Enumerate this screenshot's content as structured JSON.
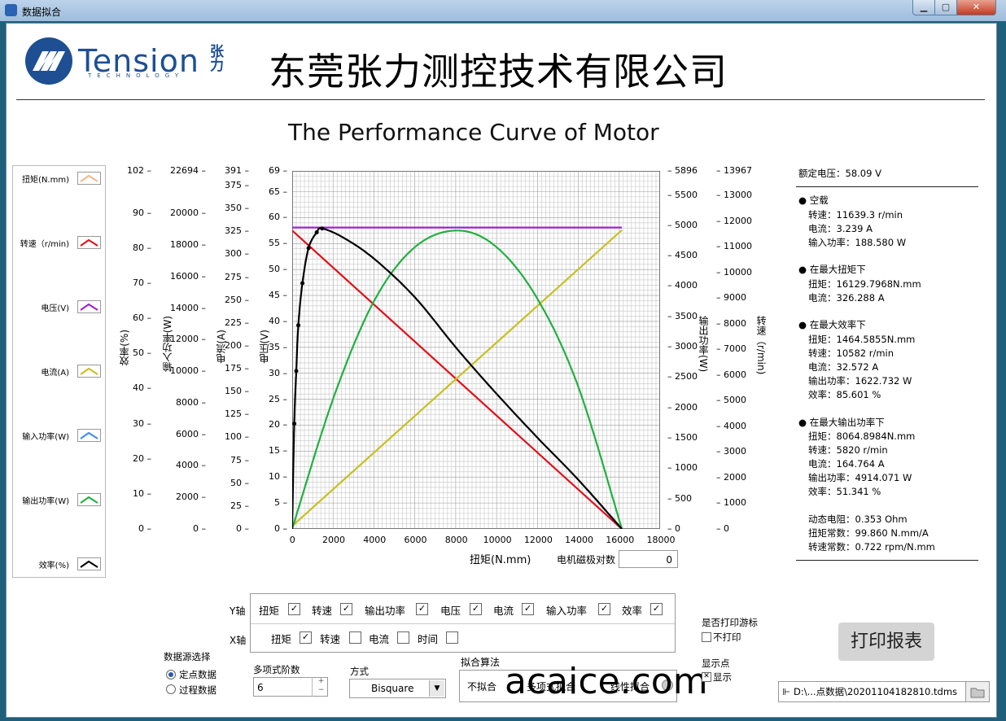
{
  "window": {
    "title": "数据拟合"
  },
  "header": {
    "logo_text": "Tension",
    "logo_sub": "TECHNOLOGY",
    "logo_cn": "张力",
    "company": "东莞张力测控技术有限公司"
  },
  "chart_title": "The Performance Curve of Motor",
  "legend": [
    {
      "label": "扭矩(N.mm)",
      "color": "#f0b98a"
    },
    {
      "label": "转速（r/min)",
      "color": "#e0101a"
    },
    {
      "label": "电压(V)",
      "color": "#a020c8"
    },
    {
      "label": "电流(A)",
      "color": "#c8c020"
    },
    {
      "label": "输入功率(W)",
      "color": "#3a8ee8"
    },
    {
      "label": "输出功率(W)",
      "color": "#20b040"
    },
    {
      "label": "效率(%)",
      "color": "#000000"
    }
  ],
  "axes": {
    "efficiency": {
      "title": "效率(%)",
      "ticks": [
        "102",
        "90",
        "80",
        "70",
        "60",
        "50",
        "40",
        "30",
        "20",
        "10",
        "0"
      ]
    },
    "input_power": {
      "title": "输入功率(W)",
      "ticks": [
        "22694",
        "20000",
        "18000",
        "16000",
        "14000",
        "12000",
        "10000",
        "8000",
        "6000",
        "4000",
        "2000",
        "0"
      ]
    },
    "current": {
      "title": "电流(A)",
      "ticks": [
        "391",
        "375",
        "350",
        "325",
        "300",
        "275",
        "250",
        "225",
        "200",
        "175",
        "150",
        "125",
        "100",
        "75",
        "50",
        "25",
        "0"
      ]
    },
    "voltage": {
      "title": "电压(V)",
      "ticks": [
        "69",
        "65",
        "60",
        "55",
        "50",
        "45",
        "40",
        "35",
        "30",
        "25",
        "20",
        "15",
        "10",
        "5",
        "0"
      ]
    },
    "output_power": {
      "title": "输出功率(W)",
      "ticks": [
        "5896",
        "5500",
        "5000",
        "4500",
        "4000",
        "3500",
        "3000",
        "2500",
        "2000",
        "1500",
        "1000",
        "500",
        "0"
      ]
    },
    "speed": {
      "title": "转速（r/min)",
      "ticks": [
        "13967",
        "13000",
        "12000",
        "11000",
        "10000",
        "9000",
        "8000",
        "7000",
        "6000",
        "5000",
        "4000",
        "3000",
        "2000",
        "1000",
        "0"
      ]
    },
    "x": {
      "title": "扭矩(N.mm)",
      "ticks": [
        "0",
        "2000",
        "4000",
        "6000",
        "8000",
        "10000",
        "12000",
        "14000",
        "16000",
        "18000"
      ]
    }
  },
  "pole_pairs": {
    "label": "电机磁极对数",
    "value": "0"
  },
  "info": {
    "rated_voltage": "额定电压：58.09 V",
    "no_load": {
      "title": "空载",
      "lines": [
        "转速：11639.3 r/min",
        "电流：3.239 A",
        "输入功率：188.580 W"
      ]
    },
    "max_torque": {
      "title": "在最大扭矩下",
      "lines": [
        "扭矩：16129.7968N.mm",
        "电流：326.288 A"
      ]
    },
    "max_eff": {
      "title": "在最大效率下",
      "lines": [
        "扭矩：1464.5855N.mm",
        "转速：10582  r/min",
        "电流：32.572 A",
        "输出功率：1622.732 W",
        "效率：85.601 %"
      ]
    },
    "max_out": {
      "title": "在最大输出功率下",
      "lines": [
        "扭矩：8064.8984N.mm",
        "转速：5820  r/min",
        "电流：164.764 A",
        "输出功率：4914.071 W",
        "效率：51.341 %"
      ]
    },
    "constants": [
      "动态电阻：0.353 Ohm",
      "扭矩常数：99.860 N.mm/A",
      "转速常数：0.722 rpm/N.mm"
    ]
  },
  "y_axis_select": {
    "label": "Y轴",
    "items": [
      {
        "label": "扭矩",
        "checked": true
      },
      {
        "label": "转速",
        "checked": true
      },
      {
        "label": "输出功率",
        "checked": true
      },
      {
        "label": "电压",
        "checked": true
      },
      {
        "label": "电流",
        "checked": true
      },
      {
        "label": "输入功率",
        "checked": true
      },
      {
        "label": "效率",
        "checked": true
      }
    ]
  },
  "x_axis_select": {
    "label": "X轴",
    "items": [
      {
        "label": "扭矩",
        "checked": true
      },
      {
        "label": "转速",
        "checked": false
      },
      {
        "label": "电流",
        "checked": false
      },
      {
        "label": "时间",
        "checked": false
      }
    ]
  },
  "data_source": {
    "label": "数据源选择",
    "options": [
      "定点数据",
      "过程数据"
    ],
    "selected": 0
  },
  "poly_order": {
    "label": "多项式阶数",
    "value": "6"
  },
  "method": {
    "label": "方式",
    "value": "Bisquare"
  },
  "fit_algo": {
    "label": "拟合算法",
    "options": [
      "不拟合",
      "多项式拟合",
      "线性拟合"
    ]
  },
  "print_cursor": {
    "label": "是否打印游标",
    "option": "不打印",
    "checked": false
  },
  "show_points": {
    "label": "显示点",
    "option": "显示",
    "checked": true
  },
  "print_button": "打印报表",
  "file_path": "D:\\...点数据\\20201104182810.tdms",
  "watermark": "acaice.com",
  "chart_data": {
    "type": "line",
    "x_label": "扭矩(N.mm)",
    "xlim": [
      0,
      18000
    ],
    "series": [
      {
        "name": "转速（r/min)",
        "axis": "speed",
        "ylim": [
          0,
          13967
        ],
        "x": [
          0,
          16129.8
        ],
        "y": [
          11639.3,
          0
        ]
      },
      {
        "name": "电压(V)",
        "axis": "voltage",
        "ylim": [
          0,
          69
        ],
        "x": [
          0,
          16129.8
        ],
        "y": [
          58.09,
          58.09
        ]
      },
      {
        "name": "电流(A)",
        "axis": "current",
        "ylim": [
          0,
          391
        ],
        "x": [
          0,
          16129.8
        ],
        "y": [
          3.239,
          326.288
        ]
      },
      {
        "name": "输出功率(W)",
        "axis": "output_power",
        "ylim": [
          0,
          5896
        ],
        "x": [
          0,
          2000,
          4000,
          6000,
          8064.9,
          10000,
          12000,
          14000,
          16129.8
        ],
        "y": [
          0,
          2140,
          3750,
          4640,
          4914,
          4640,
          3790,
          2340,
          0
        ]
      },
      {
        "name": "效率(%)",
        "axis": "efficiency",
        "ylim": [
          0,
          102
        ],
        "x": [
          0,
          100,
          200,
          300,
          500,
          800,
          1200,
          1464.6,
          2500,
          4000,
          6000,
          8064.9,
          10000,
          12000,
          14000,
          16129.8
        ],
        "y": [
          0,
          30,
          45,
          58,
          70,
          80,
          84.5,
          85.6,
          83,
          77,
          66,
          51.3,
          38.5,
          26,
          14,
          0
        ]
      }
    ]
  }
}
